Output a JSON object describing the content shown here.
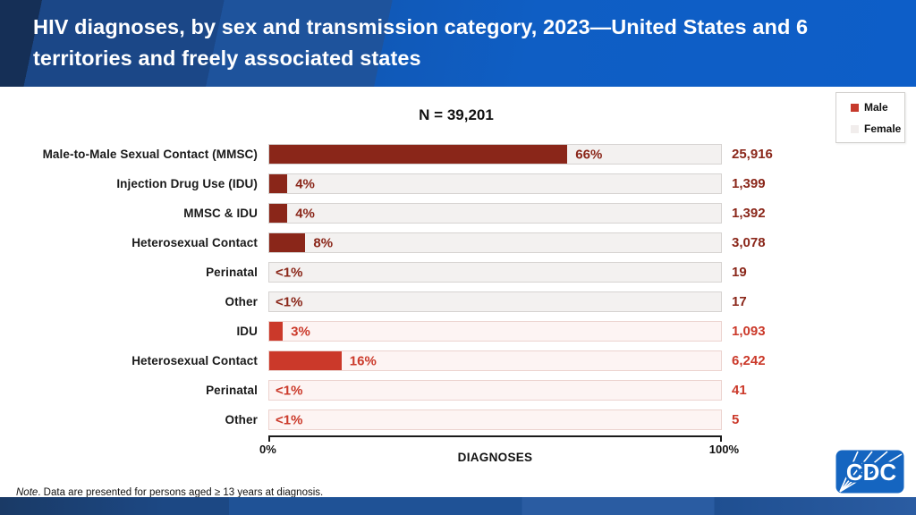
{
  "header": {
    "title": "HIV diagnoses, by sex and transmission category, 2023—United States and 6 territories and freely associated states"
  },
  "legend": {
    "items": [
      {
        "label": "Male",
        "color": "#c63a2c"
      },
      {
        "label": "Female",
        "color": "#f1edec"
      }
    ]
  },
  "chart_data": {
    "type": "bar",
    "orientation": "horizontal",
    "title": "N = 39,201",
    "n_total": 39201,
    "xlabel": "DIAGNOSES",
    "xlim": [
      0,
      100
    ],
    "x_tick_labels": [
      "0%",
      "100%"
    ],
    "legend_position": "top-right",
    "grid": false,
    "rows": [
      {
        "group": "male",
        "category": "Male-to-Male Sexual Contact (MMSC)",
        "percent": "66%",
        "width": 66,
        "count": "25,916"
      },
      {
        "group": "male",
        "category": "Injection Drug Use (IDU)",
        "percent": "4%",
        "width": 4,
        "count": "1,399"
      },
      {
        "group": "male",
        "category": "MMSC & IDU",
        "percent": "4%",
        "width": 4,
        "count": "1,392"
      },
      {
        "group": "male",
        "category": "Heterosexual Contact",
        "percent": "8%",
        "width": 8,
        "count": "3,078"
      },
      {
        "group": "male",
        "category": "Perinatal",
        "percent": "<1%",
        "width": 0,
        "count": "19"
      },
      {
        "group": "male",
        "category": "Other",
        "percent": "<1%",
        "width": 0,
        "count": "17"
      },
      {
        "group": "female",
        "category": "IDU",
        "percent": "3%",
        "width": 3,
        "count": "1,093"
      },
      {
        "group": "female",
        "category": "Heterosexual Contact",
        "percent": "16%",
        "width": 16,
        "count": "6,242"
      },
      {
        "group": "female",
        "category": "Perinatal",
        "percent": "<1%",
        "width": 0,
        "count": "41"
      },
      {
        "group": "female",
        "category": "Other",
        "percent": "<1%",
        "width": 0,
        "count": "5"
      }
    ]
  },
  "colors": {
    "male": {
      "bar": "#8a2619",
      "track": "#f3f1f0",
      "track_border": "#d6d3d1",
      "text": "#8a2619"
    },
    "female": {
      "bar": "#cb392a",
      "track": "#fdf4f3",
      "track_border": "#ecd3cf",
      "text": "#cb392a"
    },
    "header_accent": "#0f5ec4",
    "bottom_bar": "#1f5296"
  },
  "note": {
    "prefix": "Note",
    "body": ". Data are presented for persons aged ≥ 13 years at diagnosis."
  },
  "logo": {
    "text": "CDC"
  }
}
